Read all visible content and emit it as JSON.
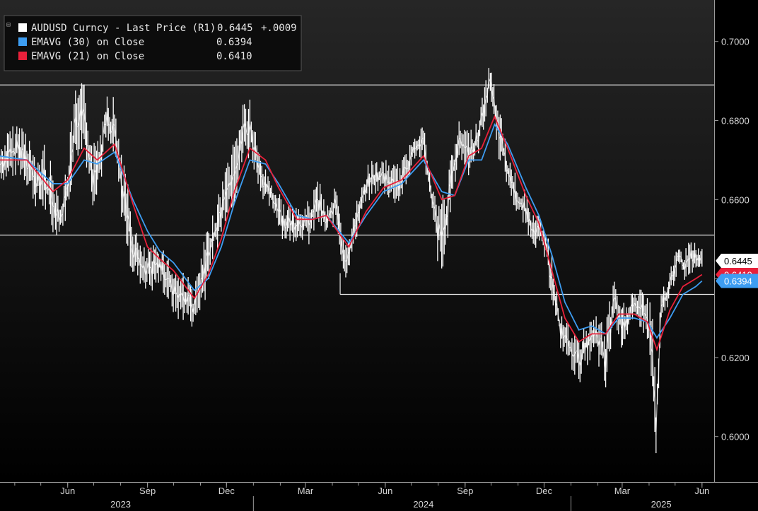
{
  "chart_data": {
    "type": "line",
    "legend": {
      "placement": "top-left",
      "entries": [
        {
          "label": "AUDUSD Curncy - Last Price (R1)",
          "value": "0.6445",
          "change": "+.0009",
          "color": "#ffffff"
        },
        {
          "label": "EMAVG (30)  on Close",
          "value": "0.6394",
          "color": "#3d9df2"
        },
        {
          "label": "EMAVG (21)  on Close",
          "value": "0.6410",
          "color": "#e8203a"
        }
      ]
    },
    "y_axis": {
      "position": "right",
      "range": [
        0.5885,
        0.7105
      ],
      "ticks": [
        "0.6000",
        "0.6200",
        "0.6400",
        "0.6600",
        "0.6800",
        "0.7000"
      ]
    },
    "x_axis": {
      "range": [
        "2023-03-15",
        "2025-06-15"
      ],
      "month_ticks": [
        {
          "label": "Jun",
          "date": "2023-06-01"
        },
        {
          "label": "Sep",
          "date": "2023-09-01"
        },
        {
          "label": "Dec",
          "date": "2023-12-01"
        },
        {
          "label": "Mar",
          "date": "2024-03-01"
        },
        {
          "label": "Jun",
          "date": "2024-06-01"
        },
        {
          "label": "Sep",
          "date": "2024-09-01"
        },
        {
          "label": "Dec",
          "date": "2024-12-01"
        },
        {
          "label": "Mar",
          "date": "2025-03-01"
        },
        {
          "label": "Jun",
          "date": "2025-06-01"
        }
      ],
      "year_labels": [
        {
          "label": "2023",
          "date": "2023-08-01"
        },
        {
          "label": "2024",
          "date": "2024-07-15"
        },
        {
          "label": "2025",
          "date": "2025-04-15"
        }
      ],
      "year_separators": [
        "2024-01-01",
        "2025-01-01"
      ]
    },
    "reference_lines": [
      {
        "y": 0.689,
        "from": "2023-03-15",
        "to": "2025-06-15"
      },
      {
        "y": 0.651,
        "from": "2023-03-15",
        "to": "2025-06-15"
      },
      {
        "y": 0.636,
        "from": "2024-04-10",
        "to": "2025-06-15"
      }
    ],
    "series": [
      {
        "name": "AUDUSD Curncy - Last Price (R1)",
        "color": "#ffffff",
        "type": "high-low bars",
        "points": [
          [
            "2023-03-15",
            0.665,
            0.673
          ],
          [
            "2023-03-25",
            0.664,
            0.678
          ],
          [
            "2023-04-05",
            0.666,
            0.68
          ],
          [
            "2023-04-15",
            0.663,
            0.679
          ],
          [
            "2023-04-25",
            0.658,
            0.67
          ],
          [
            "2023-05-05",
            0.656,
            0.675
          ],
          [
            "2023-05-15",
            0.65,
            0.668
          ],
          [
            "2023-05-25",
            0.652,
            0.66
          ],
          [
            "2023-06-01",
            0.656,
            0.672
          ],
          [
            "2023-06-10",
            0.67,
            0.688
          ],
          [
            "2023-06-20",
            0.672,
            0.69
          ],
          [
            "2023-06-30",
            0.658,
            0.674
          ],
          [
            "2023-07-10",
            0.665,
            0.68
          ],
          [
            "2023-07-15",
            0.672,
            0.69
          ],
          [
            "2023-07-25",
            0.668,
            0.686
          ],
          [
            "2023-08-05",
            0.65,
            0.67
          ],
          [
            "2023-08-15",
            0.64,
            0.656
          ],
          [
            "2023-08-25",
            0.638,
            0.648
          ],
          [
            "2023-09-05",
            0.636,
            0.648
          ],
          [
            "2023-09-15",
            0.638,
            0.65
          ],
          [
            "2023-09-25",
            0.633,
            0.646
          ],
          [
            "2023-10-05",
            0.629,
            0.643
          ],
          [
            "2023-10-15",
            0.629,
            0.642
          ],
          [
            "2023-10-25",
            0.627,
            0.638
          ],
          [
            "2023-11-05",
            0.633,
            0.65
          ],
          [
            "2023-11-15",
            0.644,
            0.656
          ],
          [
            "2023-11-25",
            0.65,
            0.664
          ],
          [
            "2023-12-01",
            0.656,
            0.67
          ],
          [
            "2023-12-10",
            0.658,
            0.676
          ],
          [
            "2023-12-20",
            0.668,
            0.686
          ],
          [
            "2023-12-28",
            0.67,
            0.687
          ],
          [
            "2024-01-05",
            0.665,
            0.675
          ],
          [
            "2024-01-15",
            0.658,
            0.668
          ],
          [
            "2024-01-25",
            0.656,
            0.664
          ],
          [
            "2024-02-05",
            0.649,
            0.66
          ],
          [
            "2024-02-15",
            0.649,
            0.658
          ],
          [
            "2024-02-25",
            0.65,
            0.658
          ],
          [
            "2024-03-05",
            0.648,
            0.66
          ],
          [
            "2024-03-15",
            0.653,
            0.666
          ],
          [
            "2024-03-25",
            0.65,
            0.659
          ],
          [
            "2024-04-05",
            0.654,
            0.664
          ],
          [
            "2024-04-15",
            0.639,
            0.648
          ],
          [
            "2024-04-25",
            0.646,
            0.656
          ],
          [
            "2024-05-05",
            0.656,
            0.666
          ],
          [
            "2024-05-15",
            0.66,
            0.67
          ],
          [
            "2024-05-25",
            0.662,
            0.67
          ],
          [
            "2024-06-05",
            0.66,
            0.67
          ],
          [
            "2024-06-15",
            0.658,
            0.669
          ],
          [
            "2024-06-25",
            0.662,
            0.672
          ],
          [
            "2024-07-05",
            0.67,
            0.678
          ],
          [
            "2024-07-15",
            0.67,
            0.68
          ],
          [
            "2024-07-25",
            0.655,
            0.663
          ],
          [
            "2024-08-05",
            0.635,
            0.662
          ],
          [
            "2024-08-15",
            0.656,
            0.67
          ],
          [
            "2024-08-25",
            0.67,
            0.68
          ],
          [
            "2024-09-05",
            0.666,
            0.678
          ],
          [
            "2024-09-15",
            0.67,
            0.68
          ],
          [
            "2024-09-25",
            0.68,
            0.692
          ],
          [
            "2024-09-30",
            0.686,
            0.694
          ],
          [
            "2024-10-10",
            0.67,
            0.685
          ],
          [
            "2024-10-20",
            0.663,
            0.672
          ],
          [
            "2024-10-30",
            0.656,
            0.666
          ],
          [
            "2024-11-10",
            0.652,
            0.662
          ],
          [
            "2024-11-20",
            0.648,
            0.656
          ],
          [
            "2024-11-30",
            0.646,
            0.656
          ],
          [
            "2024-12-10",
            0.634,
            0.646
          ],
          [
            "2024-12-20",
            0.622,
            0.632
          ],
          [
            "2024-12-30",
            0.618,
            0.628
          ],
          [
            "2025-01-10",
            0.613,
            0.625
          ],
          [
            "2025-01-20",
            0.618,
            0.63
          ],
          [
            "2025-01-30",
            0.62,
            0.631
          ],
          [
            "2025-02-10",
            0.609,
            0.63
          ],
          [
            "2025-02-20",
            0.63,
            0.64
          ],
          [
            "2025-02-28",
            0.622,
            0.633
          ],
          [
            "2025-03-10",
            0.626,
            0.637
          ],
          [
            "2025-03-20",
            0.628,
            0.638
          ],
          [
            "2025-03-30",
            0.624,
            0.636
          ],
          [
            "2025-04-05",
            0.606,
            0.632
          ],
          [
            "2025-04-09",
            0.5915,
            0.612
          ],
          [
            "2025-04-15",
            0.626,
            0.638
          ],
          [
            "2025-04-25",
            0.635,
            0.642
          ],
          [
            "2025-05-05",
            0.642,
            0.65
          ],
          [
            "2025-05-12",
            0.639,
            0.647
          ],
          [
            "2025-05-18",
            0.641,
            0.6515
          ],
          [
            "2025-05-25",
            0.642,
            0.649
          ],
          [
            "2025-06-01",
            0.643,
            0.6475
          ]
        ],
        "last": 0.6445
      },
      {
        "name": "EMAVG (30)  on Close",
        "color": "#3d9df2",
        "points": [
          [
            "2023-03-15",
            0.671
          ],
          [
            "2023-04-15",
            0.67
          ],
          [
            "2023-05-15",
            0.664
          ],
          [
            "2023-06-01",
            0.664
          ],
          [
            "2023-06-20",
            0.67
          ],
          [
            "2023-07-05",
            0.669
          ],
          [
            "2023-07-25",
            0.672
          ],
          [
            "2023-08-15",
            0.66
          ],
          [
            "2023-09-01",
            0.652
          ],
          [
            "2023-09-15",
            0.647
          ],
          [
            "2023-10-01",
            0.644
          ],
          [
            "2023-10-25",
            0.637
          ],
          [
            "2023-11-10",
            0.64
          ],
          [
            "2023-11-25",
            0.648
          ],
          [
            "2023-12-10",
            0.659
          ],
          [
            "2023-12-28",
            0.67
          ],
          [
            "2024-01-15",
            0.669
          ],
          [
            "2024-01-30",
            0.664
          ],
          [
            "2024-02-20",
            0.656
          ],
          [
            "2024-03-10",
            0.655
          ],
          [
            "2024-03-25",
            0.656
          ],
          [
            "2024-04-20",
            0.649
          ],
          [
            "2024-05-10",
            0.656
          ],
          [
            "2024-05-30",
            0.662
          ],
          [
            "2024-06-20",
            0.664
          ],
          [
            "2024-07-15",
            0.67
          ],
          [
            "2024-08-05",
            0.662
          ],
          [
            "2024-08-20",
            0.661
          ],
          [
            "2024-09-05",
            0.67
          ],
          [
            "2024-09-20",
            0.67
          ],
          [
            "2024-10-05",
            0.679
          ],
          [
            "2024-10-20",
            0.674
          ],
          [
            "2024-11-10",
            0.663
          ],
          [
            "2024-11-25",
            0.656
          ],
          [
            "2024-12-10",
            0.646
          ],
          [
            "2024-12-25",
            0.634
          ],
          [
            "2025-01-10",
            0.627
          ],
          [
            "2025-01-25",
            0.628
          ],
          [
            "2025-02-10",
            0.626
          ],
          [
            "2025-02-25",
            0.63
          ],
          [
            "2025-03-15",
            0.63
          ],
          [
            "2025-03-30",
            0.629
          ],
          [
            "2025-04-10",
            0.625
          ],
          [
            "2025-04-25",
            0.63
          ],
          [
            "2025-05-10",
            0.636
          ],
          [
            "2025-05-25",
            0.638
          ],
          [
            "2025-06-01",
            0.6394
          ]
        ],
        "last": 0.6394
      },
      {
        "name": "EMAVG (21)  on Close",
        "color": "#e8203a",
        "points": [
          [
            "2023-03-15",
            0.67
          ],
          [
            "2023-04-15",
            0.67
          ],
          [
            "2023-05-15",
            0.662
          ],
          [
            "2023-06-01",
            0.665
          ],
          [
            "2023-06-20",
            0.673
          ],
          [
            "2023-07-05",
            0.67
          ],
          [
            "2023-07-25",
            0.674
          ],
          [
            "2023-08-15",
            0.659
          ],
          [
            "2023-09-01",
            0.648
          ],
          [
            "2023-09-15",
            0.645
          ],
          [
            "2023-10-01",
            0.642
          ],
          [
            "2023-10-25",
            0.635
          ],
          [
            "2023-11-10",
            0.641
          ],
          [
            "2023-11-25",
            0.65
          ],
          [
            "2023-12-10",
            0.662
          ],
          [
            "2023-12-28",
            0.673
          ],
          [
            "2024-01-15",
            0.67
          ],
          [
            "2024-01-30",
            0.663
          ],
          [
            "2024-02-20",
            0.655
          ],
          [
            "2024-03-10",
            0.655
          ],
          [
            "2024-03-25",
            0.656
          ],
          [
            "2024-04-20",
            0.648
          ],
          [
            "2024-05-10",
            0.657
          ],
          [
            "2024-05-30",
            0.663
          ],
          [
            "2024-06-20",
            0.665
          ],
          [
            "2024-07-15",
            0.671
          ],
          [
            "2024-08-05",
            0.66
          ],
          [
            "2024-08-20",
            0.661
          ],
          [
            "2024-09-05",
            0.671
          ],
          [
            "2024-09-20",
            0.673
          ],
          [
            "2024-10-05",
            0.681
          ],
          [
            "2024-10-20",
            0.673
          ],
          [
            "2024-11-10",
            0.661
          ],
          [
            "2024-11-25",
            0.654
          ],
          [
            "2024-12-10",
            0.642
          ],
          [
            "2024-12-25",
            0.63
          ],
          [
            "2025-01-10",
            0.624
          ],
          [
            "2025-01-25",
            0.626
          ],
          [
            "2025-02-10",
            0.626
          ],
          [
            "2025-02-25",
            0.631
          ],
          [
            "2025-03-15",
            0.631
          ],
          [
            "2025-03-30",
            0.629
          ],
          [
            "2025-04-10",
            0.622
          ],
          [
            "2025-04-25",
            0.632
          ],
          [
            "2025-05-10",
            0.638
          ],
          [
            "2025-05-25",
            0.64
          ],
          [
            "2025-06-01",
            0.641
          ]
        ],
        "last": 0.641
      }
    ]
  }
}
